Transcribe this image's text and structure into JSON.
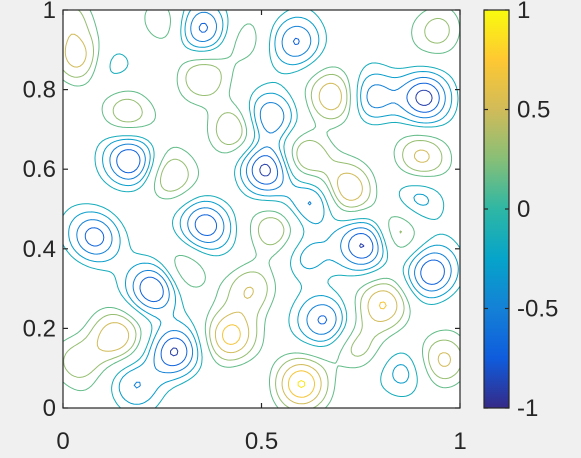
{
  "chart_data": {
    "type": "contour",
    "title": "",
    "xlabel": "",
    "ylabel": "",
    "xlim": [
      0,
      1
    ],
    "ylim": [
      0,
      1
    ],
    "x_ticks": [
      0,
      0.5,
      1
    ],
    "x_tick_labels": [
      "0",
      "0.5",
      "1"
    ],
    "y_ticks": [
      0,
      0.2,
      0.4,
      0.6,
      0.8,
      1
    ],
    "y_tick_labels": [
      "0",
      "0.2",
      "0.4",
      "0.6",
      "0.8",
      "1"
    ],
    "colormap": "parula",
    "colormap_stops": [
      "#352a87",
      "#0f5cdd",
      "#1481d6",
      "#06a4ca",
      "#2eb7a4",
      "#87bf77",
      "#d1bb59",
      "#fec832",
      "#f9fb0e"
    ],
    "color_limits": [
      -1,
      1
    ],
    "colorbar_ticks": [
      -1,
      -0.5,
      0,
      0.5,
      1
    ],
    "colorbar_tick_labels": [
      "-1",
      "-0.5",
      "0",
      "0.5",
      "1"
    ],
    "contour_levels": [
      -0.9,
      -0.7,
      -0.5,
      -0.3,
      -0.15,
      0.15,
      0.3,
      0.5,
      0.7,
      0.9
    ],
    "grid": false,
    "legend": "none",
    "features": [
      {
        "x": 0.04,
        "y": 0.88,
        "amp": 0.65
      },
      {
        "x": 0.04,
        "y": 0.12,
        "amp": 0.45
      },
      {
        "x": 0.08,
        "y": 0.43,
        "amp": -0.8
      },
      {
        "x": 0.11,
        "y": 0.86,
        "amp": -0.35
      },
      {
        "x": 0.17,
        "y": 0.62,
        "amp": -0.92
      },
      {
        "x": 0.16,
        "y": 0.74,
        "amp": 0.45
      },
      {
        "x": 0.13,
        "y": 0.18,
        "amp": 0.65
      },
      {
        "x": 0.18,
        "y": 0.06,
        "amp": -0.45
      },
      {
        "x": 0.23,
        "y": 0.3,
        "amp": -0.95
      },
      {
        "x": 0.27,
        "y": 0.58,
        "amp": 0.55
      },
      {
        "x": 0.28,
        "y": 0.14,
        "amp": -0.9
      },
      {
        "x": 0.3,
        "y": 0.34,
        "amp": 0.35
      },
      {
        "x": 0.35,
        "y": 0.95,
        "amp": -0.8
      },
      {
        "x": 0.36,
        "y": 0.46,
        "amp": -0.85
      },
      {
        "x": 0.35,
        "y": 0.83,
        "amp": 0.45
      },
      {
        "x": 0.43,
        "y": 0.7,
        "amp": 0.6
      },
      {
        "x": 0.42,
        "y": 0.18,
        "amp": 0.75
      },
      {
        "x": 0.47,
        "y": 0.3,
        "amp": 0.5
      },
      {
        "x": 0.46,
        "y": 0.92,
        "amp": 0.3
      },
      {
        "x": 0.51,
        "y": 0.6,
        "amp": -0.95
      },
      {
        "x": 0.52,
        "y": 0.73,
        "amp": -0.8
      },
      {
        "x": 0.53,
        "y": 0.45,
        "amp": 0.45
      },
      {
        "x": 0.59,
        "y": 0.92,
        "amp": -0.75
      },
      {
        "x": 0.6,
        "y": 0.06,
        "amp": 0.85
      },
      {
        "x": 0.61,
        "y": 0.63,
        "amp": 0.55
      },
      {
        "x": 0.63,
        "y": 0.52,
        "amp": -0.6
      },
      {
        "x": 0.61,
        "y": 0.38,
        "amp": -0.4
      },
      {
        "x": 0.66,
        "y": 0.22,
        "amp": -0.75
      },
      {
        "x": 0.68,
        "y": 0.78,
        "amp": 0.75
      },
      {
        "x": 0.72,
        "y": 0.55,
        "amp": 0.7
      },
      {
        "x": 0.74,
        "y": 0.15,
        "amp": 0.4
      },
      {
        "x": 0.76,
        "y": 0.41,
        "amp": -0.95
      },
      {
        "x": 0.78,
        "y": 0.78,
        "amp": -0.7
      },
      {
        "x": 0.81,
        "y": 0.26,
        "amp": 0.75
      },
      {
        "x": 0.84,
        "y": 0.44,
        "amp": 0.4
      },
      {
        "x": 0.86,
        "y": 0.09,
        "amp": -0.45
      },
      {
        "x": 0.91,
        "y": 0.78,
        "amp": -0.92
      },
      {
        "x": 0.9,
        "y": 0.63,
        "amp": 0.55
      },
      {
        "x": 0.93,
        "y": 0.34,
        "amp": -0.9
      },
      {
        "x": 0.95,
        "y": 0.95,
        "amp": 0.35
      },
      {
        "x": 0.96,
        "y": 0.12,
        "amp": 0.6
      },
      {
        "x": 0.02,
        "y": 0.98,
        "amp": 0.4
      },
      {
        "x": 0.27,
        "y": 0.96,
        "amp": 0.3
      },
      {
        "x": 0.9,
        "y": 0.53,
        "amp": -0.4
      }
    ]
  }
}
